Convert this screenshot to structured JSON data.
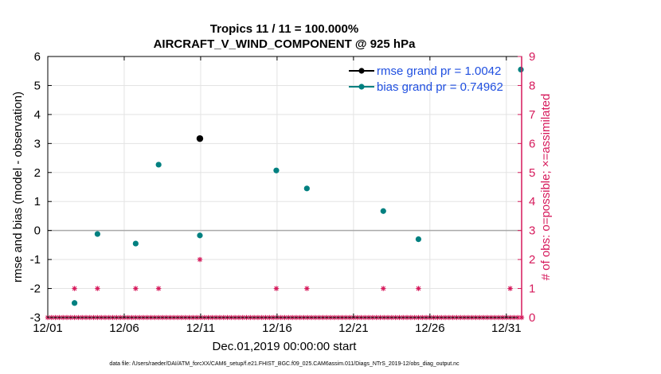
{
  "chart_data": {
    "type": "scatter",
    "title": "Tropics 11 / 11 = 100.000%",
    "subtitle": "AIRCRAFT_V_WIND_COMPONENT @ 925 hPa",
    "xlabel": "Dec.01,2019 00:00:00 start",
    "ylabel": "rmse and bias (model - observation)",
    "y2label": "# of obs: o=possible; ×=assimilated",
    "footer": "data file: /Users/raeder/DAI/ATM_forcXX/CAM6_setup/f.e21.FHIST_BGC.f09_025.CAM6assim.011/Diags_NTrS_2019-12/obs_diag_output.nc",
    "xlim": [
      1,
      32
    ],
    "ylim": [
      -3,
      6
    ],
    "y2lim": [
      0,
      9
    ],
    "xticks": [
      1,
      6,
      11,
      16,
      21,
      26,
      31
    ],
    "xtick_labels": [
      "12/01",
      "12/06",
      "12/11",
      "12/16",
      "12/21",
      "12/26",
      "12/31"
    ],
    "yticks": [
      -3,
      -2,
      -1,
      0,
      1,
      2,
      3,
      4,
      5,
      6
    ],
    "ytick_labels": [
      "-3",
      "-2",
      "-1",
      "0",
      "1",
      "2",
      "3",
      "4",
      "5",
      "6"
    ],
    "y2ticks": [
      0,
      1,
      2,
      3,
      4,
      5,
      6,
      7,
      8,
      9
    ],
    "y2tick_labels": [
      "0",
      "1",
      "2",
      "3",
      "4",
      "5",
      "6",
      "7",
      "8",
      "9"
    ],
    "grid": true,
    "legend_position": "top-right",
    "colors": {
      "rmse": "#000000",
      "bias": "#008080",
      "obs": "#d6195b",
      "zero_line": "#aaaaaa",
      "legend_text": "#1f4fe0"
    },
    "series": [
      {
        "name": "rmse grand pr = 1.0042",
        "key": "rmse",
        "x": [
          10.95
        ],
        "y": [
          3.17
        ]
      },
      {
        "name": "bias grand pr = 0.74962",
        "key": "bias",
        "x": [
          2.75,
          4.25,
          6.75,
          8.25,
          10.95,
          15.95,
          17.95,
          22.95,
          25.25,
          31.95
        ],
        "y": [
          -2.5,
          -0.12,
          -0.45,
          2.27,
          -0.17,
          2.07,
          1.45,
          0.67,
          -0.3,
          5.55
        ]
      }
    ],
    "obs_possible": {
      "x": [
        2.75,
        4.25,
        6.75,
        8.25,
        10.95,
        15.95,
        17.95,
        22.95,
        25.25,
        31.25
      ],
      "y": [
        1,
        1,
        1,
        1,
        2,
        1,
        1,
        1,
        1,
        1
      ]
    },
    "obs_zero_x_start": 1.0,
    "obs_zero_x_end": 32.0,
    "obs_zero_step": 0.25
  }
}
